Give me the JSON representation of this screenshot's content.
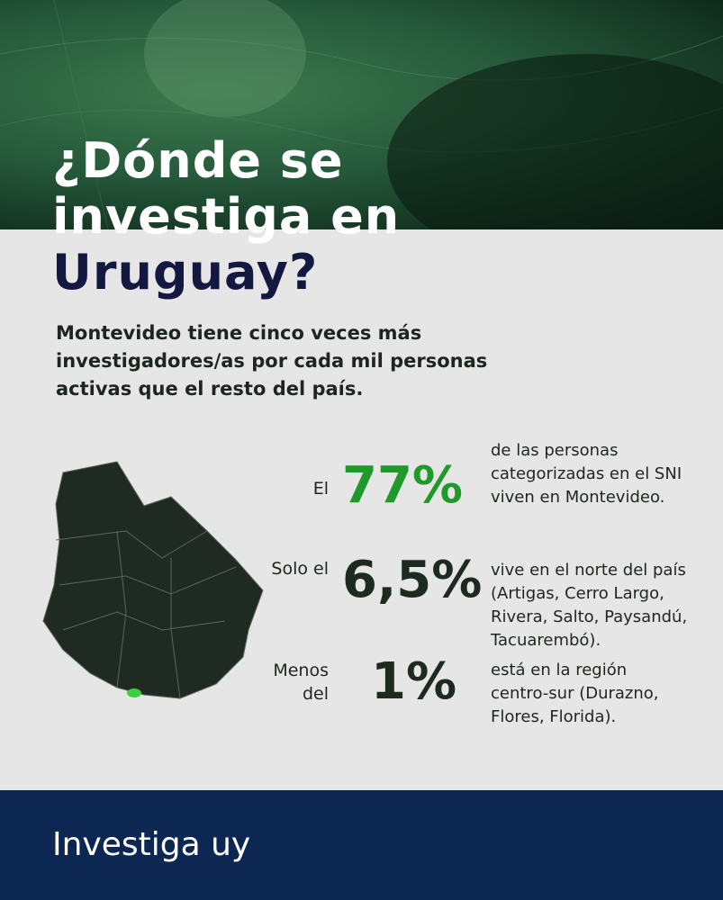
{
  "header": {
    "title_lines": [
      "¿Dónde se investiga en",
      "Uruguay?"
    ],
    "subtitle": "Montevideo tiene cinco veces más investigadores/as por cada mil personas activas que el resto del país."
  },
  "stats": [
    {
      "prefix": "El",
      "value": "77%",
      "description": "de las personas categorizadas en el SNI viven en Montevideo."
    },
    {
      "prefix": "Solo el",
      "value": "6,5%",
      "description": "vive en el norte del país (Artigas, Cerro Largo, Rivera, Salto, Paysandú, Tacuarembó)."
    },
    {
      "prefix": "Menos del",
      "value": "1%",
      "description": "está en la región centro-sur (Durazno, Flores, Florida)."
    }
  ],
  "footer": {
    "brand": "Investiga uy"
  }
}
